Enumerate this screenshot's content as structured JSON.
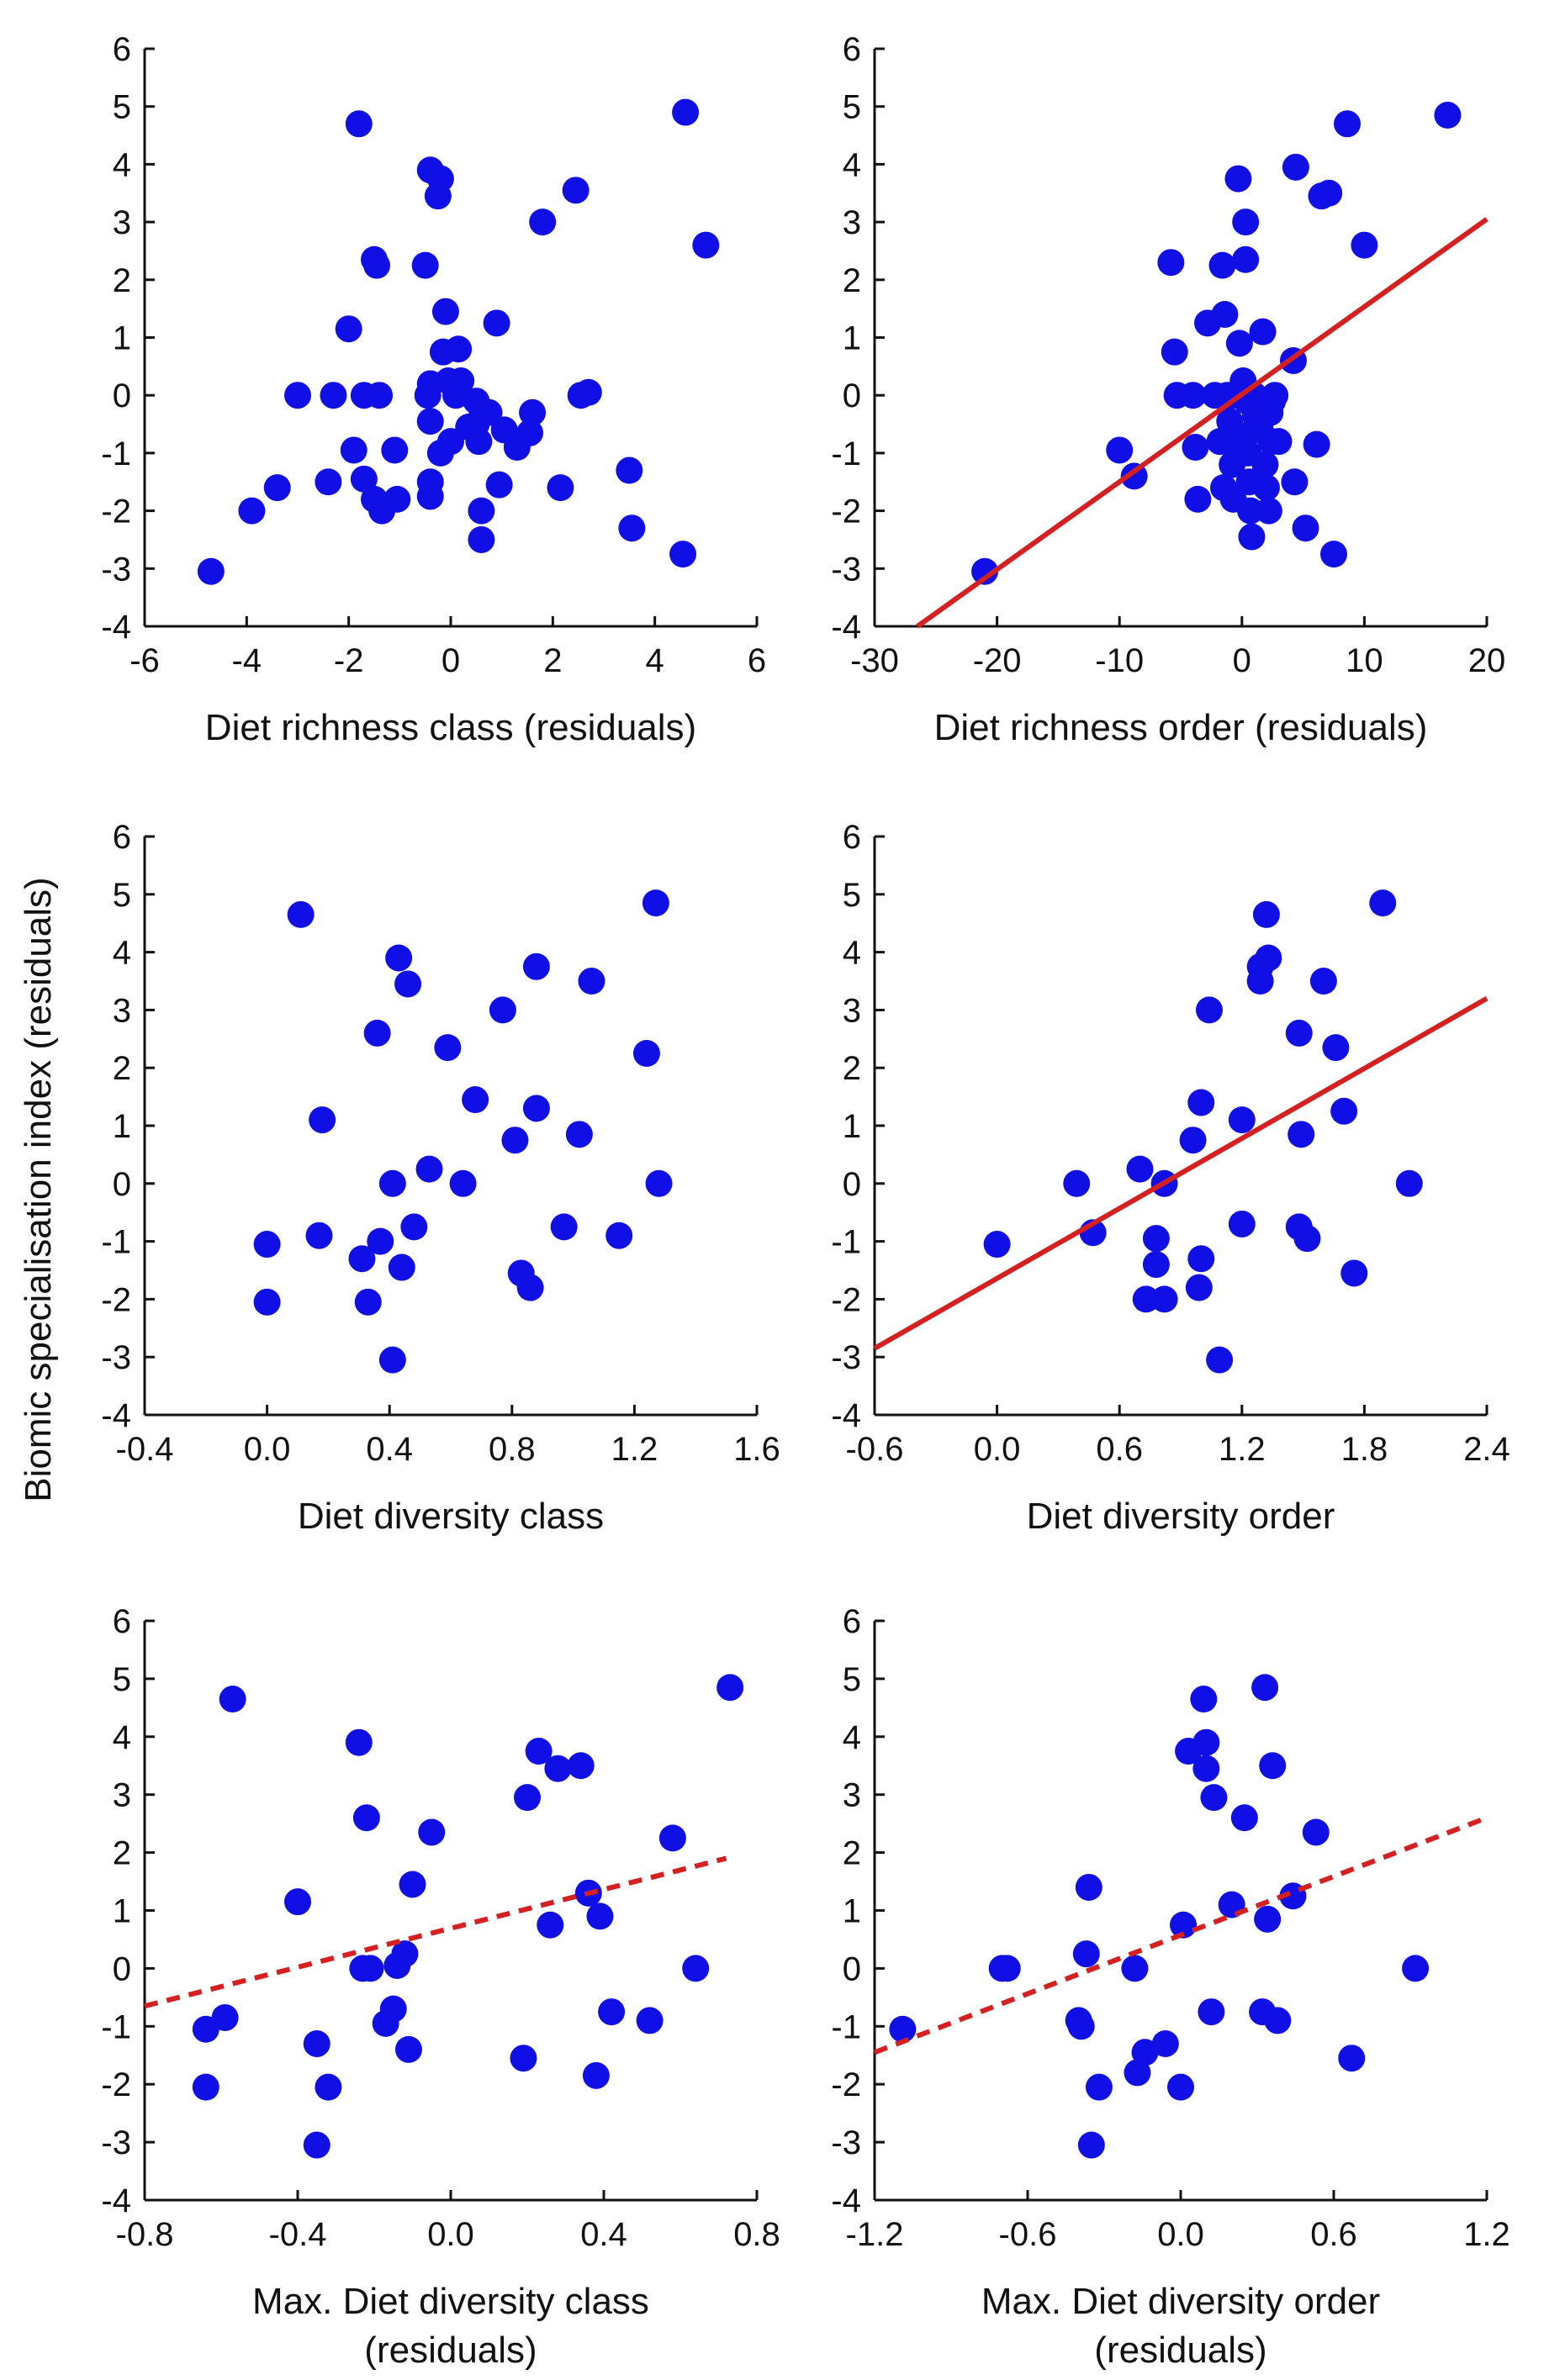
{
  "figure": {
    "shared_ylabel": "Biomic specialisation index (residuals)"
  },
  "colors": {
    "points": "#1010e6",
    "fit_line": "#d42020",
    "axis": "#111111"
  },
  "chart_data": [
    {
      "type": "scatter",
      "name": "richness-class",
      "xlabel_lines": [
        "Diet richness class (residuals)"
      ],
      "ylabel": "Biomic specialisation index (residuals)",
      "xlim": [
        -6,
        6
      ],
      "ylim": [
        -4,
        6
      ],
      "x_ticks": [
        -6,
        -4,
        -2,
        0,
        2,
        4,
        6
      ],
      "x_tick_labels": [
        "-6",
        "-4",
        "-2",
        "0",
        "2",
        "4",
        "6"
      ],
      "y_ticks": [
        -4,
        -3,
        -2,
        -1,
        0,
        1,
        2,
        3,
        4,
        5,
        6
      ],
      "y_tick_labels": [
        "-4",
        "-3",
        "-2",
        "-1",
        "0",
        "1",
        "2",
        "3",
        "4",
        "5",
        "6"
      ],
      "fit": null,
      "points": [
        [
          -4.7,
          -3.05
        ],
        [
          -3.9,
          -2.0
        ],
        [
          -3.4,
          -1.6
        ],
        [
          -3.0,
          0.0
        ],
        [
          -2.3,
          0.0
        ],
        [
          -2.4,
          -1.5
        ],
        [
          -2.0,
          1.15
        ],
        [
          -1.9,
          -0.95
        ],
        [
          -1.7,
          0.0
        ],
        [
          -1.8,
          4.7
        ],
        [
          -1.7,
          -1.45
        ],
        [
          -1.5,
          -1.8
        ],
        [
          -1.5,
          2.35
        ],
        [
          -1.45,
          2.25
        ],
        [
          -1.4,
          0.0
        ],
        [
          -1.35,
          -2.0
        ],
        [
          -1.1,
          -0.95
        ],
        [
          -1.05,
          -1.8
        ],
        [
          -0.5,
          2.25
        ],
        [
          -0.45,
          0.0
        ],
        [
          -0.4,
          0.2
        ],
        [
          -0.4,
          -0.45
        ],
        [
          -0.4,
          -1.5
        ],
        [
          -0.4,
          -1.75
        ],
        [
          -0.4,
          3.9
        ],
        [
          -0.25,
          3.45
        ],
        [
          -0.2,
          3.75
        ],
        [
          -0.15,
          0.75
        ],
        [
          -0.2,
          -1.0
        ],
        [
          -0.1,
          1.45
        ],
        [
          -0.05,
          0.25
        ],
        [
          0.0,
          -0.8
        ],
        [
          0.1,
          0.0
        ],
        [
          0.15,
          0.8
        ],
        [
          0.2,
          0.25
        ],
        [
          0.35,
          -0.55
        ],
        [
          0.5,
          -0.1
        ],
        [
          0.5,
          -0.5
        ],
        [
          0.55,
          -0.8
        ],
        [
          0.6,
          -2.0
        ],
        [
          0.6,
          -2.5
        ],
        [
          0.75,
          -0.3
        ],
        [
          0.9,
          1.25
        ],
        [
          0.95,
          -1.55
        ],
        [
          1.05,
          -0.6
        ],
        [
          1.3,
          -0.9
        ],
        [
          1.55,
          -0.65
        ],
        [
          1.6,
          -0.3
        ],
        [
          1.8,
          3.0
        ],
        [
          2.15,
          -1.6
        ],
        [
          2.45,
          3.55
        ],
        [
          2.55,
          0.0
        ],
        [
          2.7,
          0.05
        ],
        [
          3.5,
          -1.3
        ],
        [
          3.55,
          -2.3
        ],
        [
          4.55,
          -2.75
        ],
        [
          4.6,
          4.9
        ],
        [
          5.0,
          2.6
        ]
      ]
    },
    {
      "type": "scatter",
      "name": "richness-order",
      "xlabel_lines": [
        "Diet richness order (residuals)"
      ],
      "xlim": [
        -30,
        20
      ],
      "ylim": [
        -4,
        6
      ],
      "x_ticks": [
        -30,
        -20,
        -10,
        0,
        10,
        20
      ],
      "x_tick_labels": [
        "-30",
        "-20",
        "-10",
        "0",
        "10",
        "20"
      ],
      "y_ticks": [
        -4,
        -3,
        -2,
        -1,
        0,
        1,
        2,
        3,
        4,
        5,
        6
      ],
      "y_tick_labels": [
        "-4",
        "-3",
        "-2",
        "-1",
        "0",
        "1",
        "2",
        "3",
        "4",
        "5",
        "6"
      ],
      "fit": {
        "style": "solid",
        "x": [
          -26.5,
          20
        ],
        "y": [
          -4.0,
          3.05
        ]
      },
      "points": [
        [
          -21,
          -3.05
        ],
        [
          -10,
          -0.95
        ],
        [
          -8.8,
          -1.4
        ],
        [
          -5.8,
          2.3
        ],
        [
          -5.5,
          0.75
        ],
        [
          -5.3,
          0.0
        ],
        [
          -4,
          0.0
        ],
        [
          -3.8,
          -0.9
        ],
        [
          -3.6,
          -1.8
        ],
        [
          -2.8,
          1.25
        ],
        [
          -2.2,
          0.0
        ],
        [
          -1.8,
          -0.8
        ],
        [
          -1.6,
          2.25
        ],
        [
          -1.5,
          -1.6
        ],
        [
          -1.4,
          1.4
        ],
        [
          -1.2,
          0.0
        ],
        [
          -1.0,
          -0.45
        ],
        [
          -0.8,
          -1.2
        ],
        [
          -0.7,
          -1.8
        ],
        [
          -0.5,
          0.0
        ],
        [
          -0.4,
          -0.9
        ],
        [
          -0.3,
          3.75
        ],
        [
          -0.2,
          0.9
        ],
        [
          0.1,
          0.25
        ],
        [
          0.2,
          -0.7
        ],
        [
          0.3,
          2.35
        ],
        [
          0.3,
          3.0
        ],
        [
          0.4,
          -0.1
        ],
        [
          0.5,
          -1.0
        ],
        [
          0.6,
          -1.5
        ],
        [
          0.7,
          -2.0
        ],
        [
          0.8,
          -2.45
        ],
        [
          1.0,
          0.0
        ],
        [
          1.1,
          -0.35
        ],
        [
          1.5,
          -0.6
        ],
        [
          1.7,
          1.1
        ],
        [
          1.9,
          -1.2
        ],
        [
          2.0,
          -1.6
        ],
        [
          2.2,
          -2.0
        ],
        [
          2.3,
          -0.3
        ],
        [
          2.4,
          -0.8
        ],
        [
          2.5,
          -0.1
        ],
        [
          2.7,
          0.0
        ],
        [
          3.0,
          -0.8
        ],
        [
          4.2,
          0.6
        ],
        [
          4.3,
          -1.5
        ],
        [
          4.4,
          3.95
        ],
        [
          5.2,
          -2.3
        ],
        [
          6.1,
          -0.85
        ],
        [
          6.5,
          3.45
        ],
        [
          7.1,
          3.5
        ],
        [
          7.5,
          -2.75
        ],
        [
          8.6,
          4.7
        ],
        [
          10,
          2.6
        ],
        [
          16.8,
          4.85
        ]
      ]
    },
    {
      "type": "scatter",
      "name": "diversity-class",
      "xlabel_lines": [
        "Diet diversity class"
      ],
      "xlim": [
        -0.4,
        1.6
      ],
      "ylim": [
        -4,
        6
      ],
      "x_ticks": [
        -0.4,
        0.0,
        0.4,
        0.8,
        1.2,
        1.6
      ],
      "x_tick_labels": [
        "-0.4",
        "0.0",
        "0.4",
        "0.8",
        "1.2",
        "1.6"
      ],
      "y_ticks": [
        -4,
        -3,
        -2,
        -1,
        0,
        1,
        2,
        3,
        4,
        5,
        6
      ],
      "y_tick_labels": [
        "-4",
        "-3",
        "-2",
        "-1",
        "0",
        "1",
        "2",
        "3",
        "4",
        "5",
        "6"
      ],
      "fit": null,
      "points": [
        [
          0.0,
          -1.05
        ],
        [
          0.0,
          -2.05
        ],
        [
          0.11,
          4.65
        ],
        [
          0.17,
          -0.9
        ],
        [
          0.18,
          1.1
        ],
        [
          0.31,
          -1.3
        ],
        [
          0.33,
          -2.05
        ],
        [
          0.36,
          2.6
        ],
        [
          0.37,
          -1.0
        ],
        [
          0.41,
          0.0
        ],
        [
          0.41,
          -3.05
        ],
        [
          0.43,
          3.9
        ],
        [
          0.44,
          -1.45
        ],
        [
          0.46,
          3.45
        ],
        [
          0.48,
          -0.75
        ],
        [
          0.53,
          0.25
        ],
        [
          0.59,
          2.35
        ],
        [
          0.64,
          0.0
        ],
        [
          0.68,
          1.45
        ],
        [
          0.77,
          3.0
        ],
        [
          0.81,
          0.75
        ],
        [
          0.83,
          -1.55
        ],
        [
          0.86,
          -1.8
        ],
        [
          0.88,
          3.75
        ],
        [
          0.88,
          1.3
        ],
        [
          0.97,
          -0.75
        ],
        [
          1.02,
          0.85
        ],
        [
          1.06,
          3.5
        ],
        [
          1.15,
          -0.9
        ],
        [
          1.24,
          2.25
        ],
        [
          1.27,
          4.85
        ],
        [
          1.28,
          0.0
        ]
      ]
    },
    {
      "type": "scatter",
      "name": "diversity-order",
      "xlabel_lines": [
        "Diet diversity order"
      ],
      "xlim": [
        -0.6,
        2.4
      ],
      "ylim": [
        -4,
        6
      ],
      "x_ticks": [
        -0.6,
        0.0,
        0.6,
        1.2,
        1.8,
        2.4
      ],
      "x_tick_labels": [
        "-0.6",
        "0.0",
        "0.6",
        "1.2",
        "1.8",
        "2.4"
      ],
      "y_ticks": [
        -4,
        -3,
        -2,
        -1,
        0,
        1,
        2,
        3,
        4,
        5,
        6
      ],
      "y_tick_labels": [
        "-4",
        "-3",
        "-2",
        "-1",
        "0",
        "1",
        "2",
        "3",
        "4",
        "5",
        "6"
      ],
      "fit": {
        "style": "solid",
        "x": [
          -0.6,
          2.4
        ],
        "y": [
          -2.85,
          3.2
        ]
      },
      "points": [
        [
          0.0,
          -1.05
        ],
        [
          0.39,
          0.0
        ],
        [
          0.47,
          -0.85
        ],
        [
          0.7,
          0.25
        ],
        [
          0.73,
          -2.0
        ],
        [
          0.78,
          -1.4
        ],
        [
          0.78,
          -0.95
        ],
        [
          0.82,
          -2.0
        ],
        [
          0.82,
          0.0
        ],
        [
          0.96,
          0.75
        ],
        [
          0.99,
          -1.8
        ],
        [
          1.0,
          1.4
        ],
        [
          1.0,
          -1.3
        ],
        [
          1.04,
          3.0
        ],
        [
          1.09,
          -3.05
        ],
        [
          1.2,
          1.1
        ],
        [
          1.2,
          -0.7
        ],
        [
          1.29,
          3.5
        ],
        [
          1.29,
          3.75
        ],
        [
          1.32,
          4.65
        ],
        [
          1.33,
          3.9
        ],
        [
          1.48,
          -0.75
        ],
        [
          1.48,
          2.6
        ],
        [
          1.49,
          0.85
        ],
        [
          1.52,
          -0.95
        ],
        [
          1.6,
          3.5
        ],
        [
          1.66,
          2.35
        ],
        [
          1.7,
          1.25
        ],
        [
          1.75,
          -1.55
        ],
        [
          1.89,
          4.85
        ],
        [
          2.02,
          0.0
        ]
      ]
    },
    {
      "type": "scatter",
      "name": "max-diversity-class",
      "xlabel_lines": [
        "Max. Diet diversity class",
        "(residuals)"
      ],
      "xlim": [
        -0.8,
        0.8
      ],
      "ylim": [
        -4,
        6
      ],
      "x_ticks": [
        -0.8,
        -0.4,
        0.0,
        0.4,
        0.8
      ],
      "x_tick_labels": [
        "-0.8",
        "-0.4",
        "0.0",
        "0.4",
        "0.8"
      ],
      "y_ticks": [
        -4,
        -3,
        -2,
        -1,
        0,
        1,
        2,
        3,
        4,
        5,
        6
      ],
      "y_tick_labels": [
        "-4",
        "-3",
        "-2",
        "-1",
        "0",
        "1",
        "2",
        "3",
        "4",
        "5",
        "6"
      ],
      "fit": {
        "style": "dashed",
        "x": [
          -0.8,
          0.72
        ],
        "y": [
          -0.65,
          1.9
        ]
      },
      "points": [
        [
          -0.64,
          -1.05
        ],
        [
          -0.64,
          -2.05
        ],
        [
          -0.59,
          -0.85
        ],
        [
          -0.57,
          4.65
        ],
        [
          -0.4,
          1.15
        ],
        [
          -0.35,
          -1.3
        ],
        [
          -0.35,
          -3.05
        ],
        [
          -0.32,
          -2.05
        ],
        [
          -0.24,
          3.9
        ],
        [
          -0.23,
          0.0
        ],
        [
          -0.22,
          2.6
        ],
        [
          -0.21,
          0.0
        ],
        [
          -0.17,
          -0.95
        ],
        [
          -0.15,
          -0.7
        ],
        [
          -0.14,
          0.05
        ],
        [
          -0.12,
          0.25
        ],
        [
          -0.11,
          -1.4
        ],
        [
          -0.1,
          1.45
        ],
        [
          -0.05,
          2.35
        ],
        [
          0.19,
          -1.55
        ],
        [
          0.2,
          2.95
        ],
        [
          0.23,
          3.75
        ],
        [
          0.26,
          0.75
        ],
        [
          0.28,
          3.45
        ],
        [
          0.34,
          3.5
        ],
        [
          0.36,
          1.3
        ],
        [
          0.38,
          -1.85
        ],
        [
          0.39,
          0.9
        ],
        [
          0.42,
          -0.75
        ],
        [
          0.52,
          -0.9
        ],
        [
          0.58,
          2.25
        ],
        [
          0.64,
          0.0
        ],
        [
          0.73,
          4.85
        ]
      ]
    },
    {
      "type": "scatter",
      "name": "max-diversity-order",
      "xlabel_lines": [
        "Max. Diet diversity order",
        "(residuals)"
      ],
      "xlim": [
        -1.2,
        1.2
      ],
      "ylim": [
        -4,
        6
      ],
      "x_ticks": [
        -1.2,
        -0.6,
        0.0,
        0.6,
        1.2
      ],
      "x_tick_labels": [
        "-1.2",
        "-0.6",
        "0.0",
        "0.6",
        "1.2"
      ],
      "y_ticks": [
        -4,
        -3,
        -2,
        -1,
        0,
        1,
        2,
        3,
        4,
        5,
        6
      ],
      "y_tick_labels": [
        "-4",
        "-3",
        "-2",
        "-1",
        "0",
        "1",
        "2",
        "3",
        "4",
        "5",
        "6"
      ],
      "fit": {
        "style": "dashed",
        "x": [
          -1.2,
          1.2
        ],
        "y": [
          -1.45,
          2.6
        ]
      },
      "points": [
        [
          -1.09,
          -1.05
        ],
        [
          -0.7,
          0.0
        ],
        [
          -0.68,
          0.0
        ],
        [
          -0.4,
          -0.9
        ],
        [
          -0.39,
          -1.0
        ],
        [
          -0.37,
          0.25
        ],
        [
          -0.36,
          1.4
        ],
        [
          -0.35,
          -3.05
        ],
        [
          -0.32,
          -2.05
        ],
        [
          -0.18,
          0.0
        ],
        [
          -0.17,
          -1.8
        ],
        [
          -0.14,
          -1.45
        ],
        [
          -0.06,
          -1.3
        ],
        [
          0.0,
          -2.05
        ],
        [
          0.01,
          0.75
        ],
        [
          0.03,
          3.75
        ],
        [
          0.09,
          4.65
        ],
        [
          0.1,
          3.45
        ],
        [
          0.1,
          3.9
        ],
        [
          0.12,
          -0.75
        ],
        [
          0.13,
          2.95
        ],
        [
          0.2,
          1.1
        ],
        [
          0.25,
          2.6
        ],
        [
          0.32,
          -0.75
        ],
        [
          0.33,
          4.85
        ],
        [
          0.34,
          0.85
        ],
        [
          0.36,
          3.5
        ],
        [
          0.38,
          -0.9
        ],
        [
          0.44,
          1.25
        ],
        [
          0.53,
          2.35
        ],
        [
          0.67,
          -1.55
        ],
        [
          0.92,
          0.0
        ]
      ]
    }
  ]
}
